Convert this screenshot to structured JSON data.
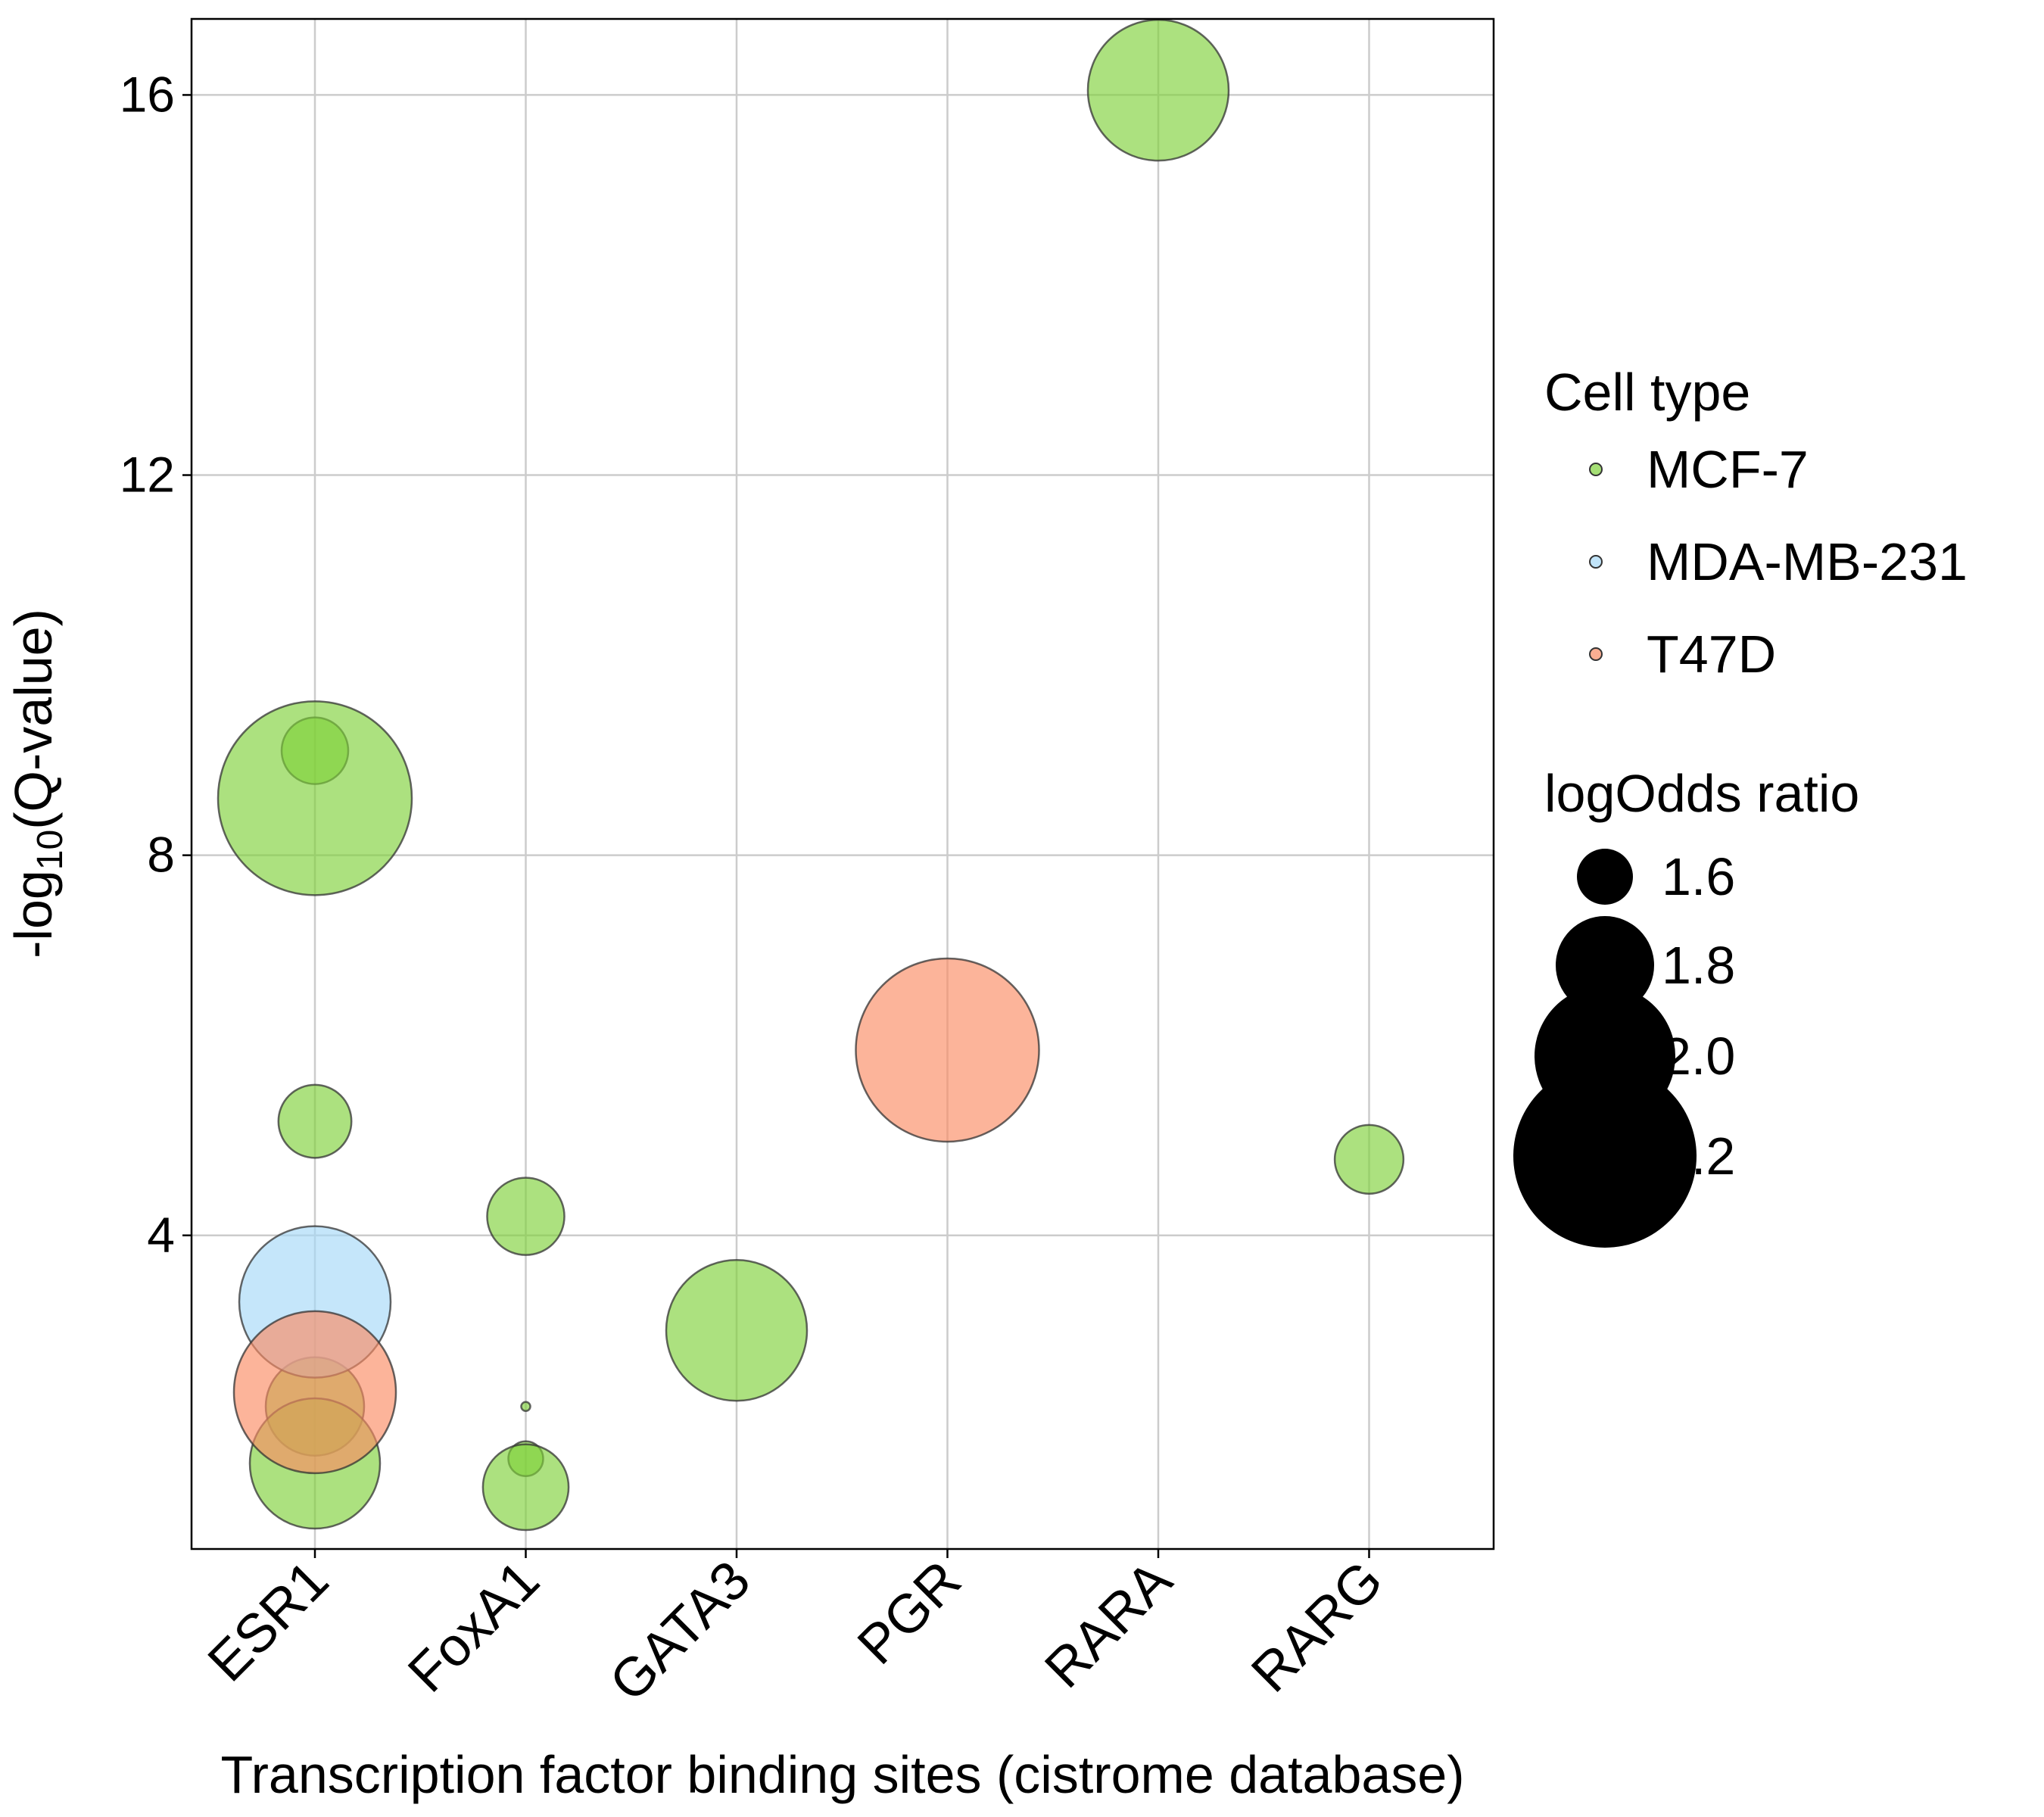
{
  "chart_data": {
    "type": "scatter",
    "subtype": "bubble",
    "xlabel": "Transcription factor binding sites (cistrome database)",
    "ylabel": {
      "prefix": "-log",
      "subscript": "10",
      "suffix": "(Q-value)"
    },
    "categories": [
      "ESR1",
      "FoxA1",
      "GATA3",
      "PGR",
      "RARA",
      "RARG"
    ],
    "y_ticks": [
      "4",
      "8",
      "12",
      "16"
    ],
    "ylim": [
      0.7,
      16.8
    ],
    "grid": true,
    "legend_position": "right",
    "color_legend": {
      "title": "Cell type",
      "entries": [
        {
          "label": "MCF-7",
          "color": "#7fd13b"
        },
        {
          "label": "MDA-MB-231",
          "color": "#a6d8f7"
        },
        {
          "label": "T47D",
          "color": "#fa8c64"
        }
      ]
    },
    "size_legend": {
      "title": "logOdds ratio",
      "entries": [
        {
          "label": "1.6",
          "value": 1.6
        },
        {
          "label": "1.8",
          "value": 1.8
        },
        {
          "label": "2.0",
          "value": 2.0
        },
        {
          "label": "2.2",
          "value": 2.2
        }
      ]
    },
    "series": [
      {
        "name": "MCF-7",
        "points": [
          {
            "x": "ESR1",
            "y": 9.1,
            "logodds": 1.65
          },
          {
            "x": "ESR1",
            "y": 8.6,
            "logodds": 2.25
          },
          {
            "x": "ESR1",
            "y": 5.2,
            "logodds": 1.68
          },
          {
            "x": "ESR1",
            "y": 2.2,
            "logodds": 1.8
          },
          {
            "x": "ESR1",
            "y": 1.6,
            "logodds": 1.95
          },
          {
            "x": "FoxA1",
            "y": 4.2,
            "logodds": 1.7
          },
          {
            "x": "FoxA1",
            "y": 2.2,
            "logodds": 1.25
          },
          {
            "x": "FoxA1",
            "y": 1.65,
            "logodds": 1.5
          },
          {
            "x": "FoxA1",
            "y": 1.35,
            "logodds": 1.74
          },
          {
            "x": "GATA3",
            "y": 3.0,
            "logodds": 2.0
          },
          {
            "x": "RARA",
            "y": 16.05,
            "logodds": 2.0
          },
          {
            "x": "RARG",
            "y": 4.8,
            "logodds": 1.66
          }
        ]
      },
      {
        "name": "MDA-MB-231",
        "points": [
          {
            "x": "ESR1",
            "y": 3.3,
            "logodds": 2.05
          }
        ]
      },
      {
        "name": "T47D",
        "points": [
          {
            "x": "ESR1",
            "y": 2.35,
            "logodds": 2.1
          },
          {
            "x": "PGR",
            "y": 5.95,
            "logodds": 2.2
          }
        ]
      }
    ]
  }
}
